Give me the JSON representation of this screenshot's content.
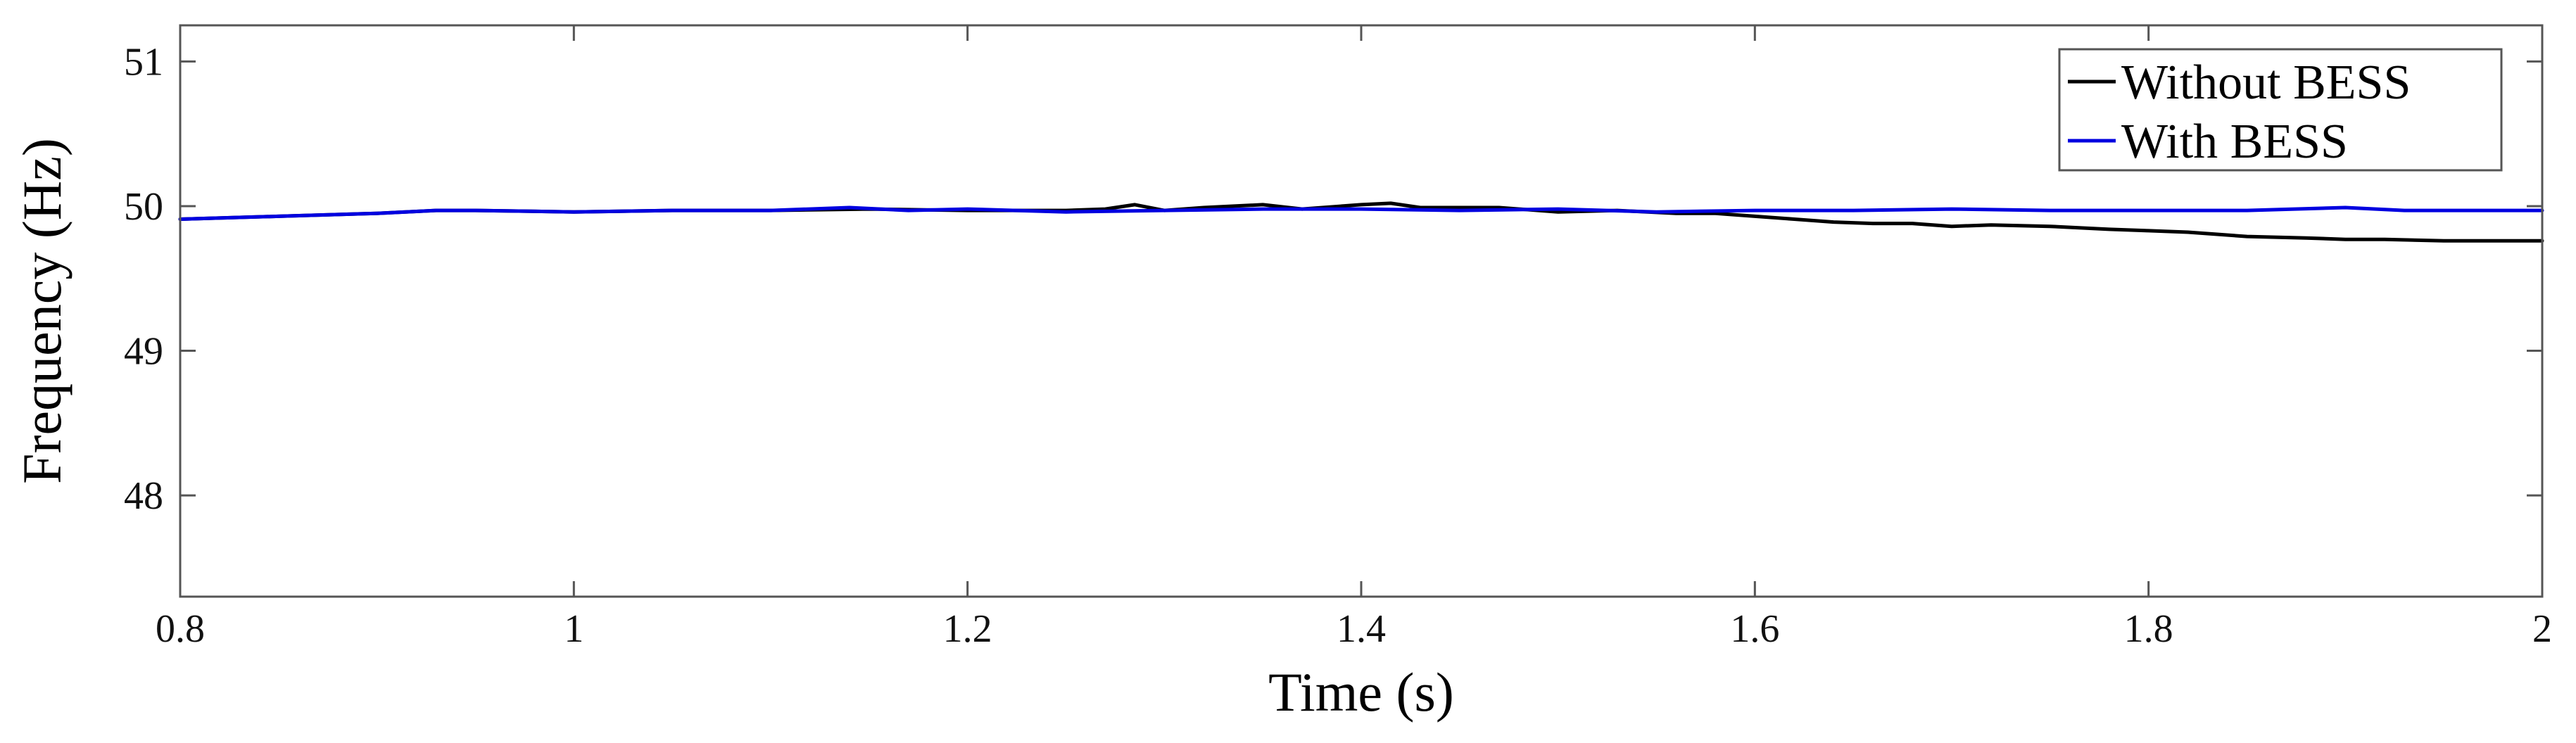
{
  "chart_data": {
    "type": "line",
    "title": "",
    "xlabel": "Time (s)",
    "ylabel": "Frequency (Hz)",
    "xlim": [
      0.8,
      2.0
    ],
    "ylim": [
      47.3,
      51.25
    ],
    "xticks": [
      0.8,
      1.0,
      1.2,
      1.4,
      1.6,
      1.8,
      2.0
    ],
    "xtick_labels": [
      "0.8",
      "1",
      "1.2",
      "1.4",
      "1.6",
      "1.8",
      "2"
    ],
    "yticks": [
      48,
      49,
      50,
      51
    ],
    "ytick_labels": [
      "48",
      "49",
      "50",
      "51"
    ],
    "grid": false,
    "legend_position": "top-right",
    "series": [
      {
        "name": "Without BESS",
        "color": "#000000",
        "x": [
          0.8,
          0.85,
          0.9,
          0.93,
          0.95,
          1.0,
          1.05,
          1.1,
          1.15,
          1.2,
          1.22,
          1.25,
          1.27,
          1.285,
          1.3,
          1.32,
          1.35,
          1.37,
          1.4,
          1.415,
          1.43,
          1.47,
          1.5,
          1.53,
          1.56,
          1.58,
          1.6,
          1.62,
          1.64,
          1.66,
          1.68,
          1.7,
          1.72,
          1.75,
          1.78,
          1.8,
          1.82,
          1.85,
          1.88,
          1.9,
          1.92,
          1.95,
          1.98,
          2.0
        ],
        "y": [
          49.91,
          49.93,
          49.95,
          49.97,
          49.97,
          49.96,
          49.97,
          49.97,
          49.98,
          49.97,
          49.97,
          49.97,
          49.98,
          50.01,
          49.97,
          49.99,
          50.01,
          49.98,
          50.01,
          50.02,
          49.99,
          49.99,
          49.96,
          49.97,
          49.95,
          49.95,
          49.93,
          49.91,
          49.89,
          49.88,
          49.88,
          49.86,
          49.87,
          49.86,
          49.84,
          49.83,
          49.82,
          49.79,
          49.78,
          49.77,
          49.77,
          49.76,
          49.76,
          49.76
        ]
      },
      {
        "name": "With BESS",
        "color": "#0000e0",
        "x": [
          0.8,
          0.85,
          0.9,
          0.93,
          0.95,
          1.0,
          1.05,
          1.1,
          1.14,
          1.17,
          1.2,
          1.25,
          1.3,
          1.35,
          1.4,
          1.45,
          1.5,
          1.55,
          1.6,
          1.65,
          1.7,
          1.75,
          1.8,
          1.85,
          1.9,
          1.93,
          1.96,
          2.0
        ],
        "y": [
          49.91,
          49.93,
          49.95,
          49.97,
          49.97,
          49.96,
          49.97,
          49.97,
          49.99,
          49.97,
          49.98,
          49.96,
          49.97,
          49.98,
          49.98,
          49.97,
          49.98,
          49.96,
          49.97,
          49.97,
          49.98,
          49.97,
          49.97,
          49.97,
          49.99,
          49.97,
          49.97,
          49.97
        ]
      }
    ]
  }
}
